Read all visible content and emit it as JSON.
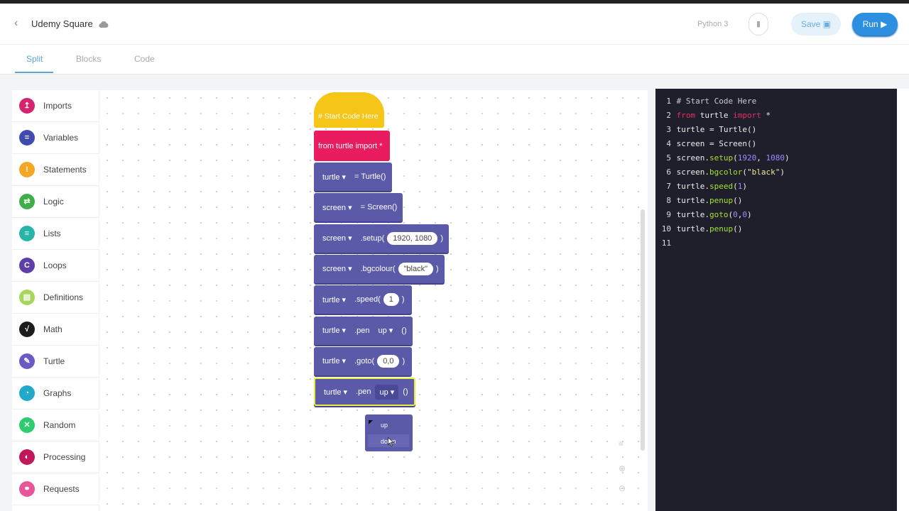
{
  "header": {
    "title": "Udemy Square",
    "language": "Python 3",
    "save_label": "Save",
    "run_label": "Run"
  },
  "tabs": [
    {
      "label": "Split"
    },
    {
      "label": "Blocks"
    },
    {
      "label": "Code"
    }
  ],
  "sidebar": {
    "items": [
      {
        "label": "Imports",
        "color": "#d6246e",
        "icon": "↥"
      },
      {
        "label": "Variables",
        "color": "#3f4bb0",
        "icon": "="
      },
      {
        "label": "Statements",
        "color": "#f5a623",
        "icon": "!"
      },
      {
        "label": "Logic",
        "color": "#3fae49",
        "icon": "⇄"
      },
      {
        "label": "Lists",
        "color": "#26b5a8",
        "icon": "≡"
      },
      {
        "label": "Loops",
        "color": "#5e3fa8",
        "icon": "C"
      },
      {
        "label": "Definitions",
        "color": "#a6d75c",
        "icon": "▤"
      },
      {
        "label": "Math",
        "color": "#1c1c1c",
        "icon": "√"
      },
      {
        "label": "Turtle",
        "color": "#6a5bc4",
        "icon": "✎"
      },
      {
        "label": "Graphs",
        "color": "#22a9c9",
        "icon": "◔"
      },
      {
        "label": "Random",
        "color": "#2ecc71",
        "icon": "✕"
      },
      {
        "label": "Processing",
        "color": "#c2185b",
        "icon": "◐"
      },
      {
        "label": "Requests",
        "color": "#e8559a",
        "icon": "⚭"
      }
    ]
  },
  "blocks": {
    "hat": "# Start Code Here",
    "import": "from turtle import *",
    "b3": {
      "var": "turtle",
      "text": "= Turtle()"
    },
    "b4": {
      "var": "screen",
      "text": "= Screen()"
    },
    "b5": {
      "var": "screen",
      "method": ".setup(",
      "arg": "1920, 1080",
      "close": ")"
    },
    "b6": {
      "var": "screen",
      "method": ".bgcolour(",
      "arg": "\"black\"",
      "close": ")"
    },
    "b7": {
      "var": "turtle",
      "method": ".speed(",
      "arg": "1",
      "close": ")"
    },
    "b8": {
      "var": "turtle",
      "method": ".pen",
      "opt": "up",
      "close": "()"
    },
    "b9": {
      "var": "turtle",
      "method": ".goto(",
      "arg": "0,0",
      "close": ")"
    },
    "b10": {
      "var": "turtle",
      "method": ".pen",
      "opt": "up",
      "close": "()"
    },
    "dropdown_options": [
      "up",
      "down"
    ]
  },
  "code": {
    "lines": [
      [
        {
          "t": "# Start Code Here",
          "c": "#ccc"
        }
      ],
      [
        {
          "t": "from",
          "c": "#e0306a"
        },
        {
          "t": " turtle ",
          "c": "#eee"
        },
        {
          "t": "import",
          "c": "#e0306a"
        },
        {
          "t": " *",
          "c": "#eee"
        }
      ],
      [
        {
          "t": "turtle = Turtle()",
          "c": "#eee"
        }
      ],
      [
        {
          "t": "screen = Screen()",
          "c": "#eee"
        }
      ],
      [
        {
          "t": "screen.",
          "c": "#eee"
        },
        {
          "t": "setup",
          "c": "#a6e22e"
        },
        {
          "t": "(",
          "c": "#eee"
        },
        {
          "t": "1920",
          "c": "#9b8cff"
        },
        {
          "t": ", ",
          "c": "#eee"
        },
        {
          "t": "1080",
          "c": "#9b8cff"
        },
        {
          "t": ")",
          "c": "#eee"
        }
      ],
      [
        {
          "t": "screen.",
          "c": "#eee"
        },
        {
          "t": "bgcolor",
          "c": "#a6e22e"
        },
        {
          "t": "(",
          "c": "#eee"
        },
        {
          "t": "\"black\"",
          "c": "#f0e6a0"
        },
        {
          "t": ")",
          "c": "#eee"
        }
      ],
      [
        {
          "t": "turtle.",
          "c": "#eee"
        },
        {
          "t": "speed",
          "c": "#a6e22e"
        },
        {
          "t": "(",
          "c": "#eee"
        },
        {
          "t": "1",
          "c": "#9b8cff"
        },
        {
          "t": ")",
          "c": "#eee"
        }
      ],
      [
        {
          "t": "turtle.",
          "c": "#eee"
        },
        {
          "t": "penup",
          "c": "#a6e22e"
        },
        {
          "t": "()",
          "c": "#eee"
        }
      ],
      [
        {
          "t": "turtle.",
          "c": "#eee"
        },
        {
          "t": "goto",
          "c": "#a6e22e"
        },
        {
          "t": "(",
          "c": "#eee"
        },
        {
          "t": "0",
          "c": "#9b8cff"
        },
        {
          "t": ",",
          "c": "#eee"
        },
        {
          "t": "0",
          "c": "#9b8cff"
        },
        {
          "t": ")",
          "c": "#eee"
        }
      ],
      [
        {
          "t": "turtle.",
          "c": "#eee"
        },
        {
          "t": "penup",
          "c": "#a6e22e"
        },
        {
          "t": "()",
          "c": "#eee"
        }
      ],
      []
    ]
  }
}
